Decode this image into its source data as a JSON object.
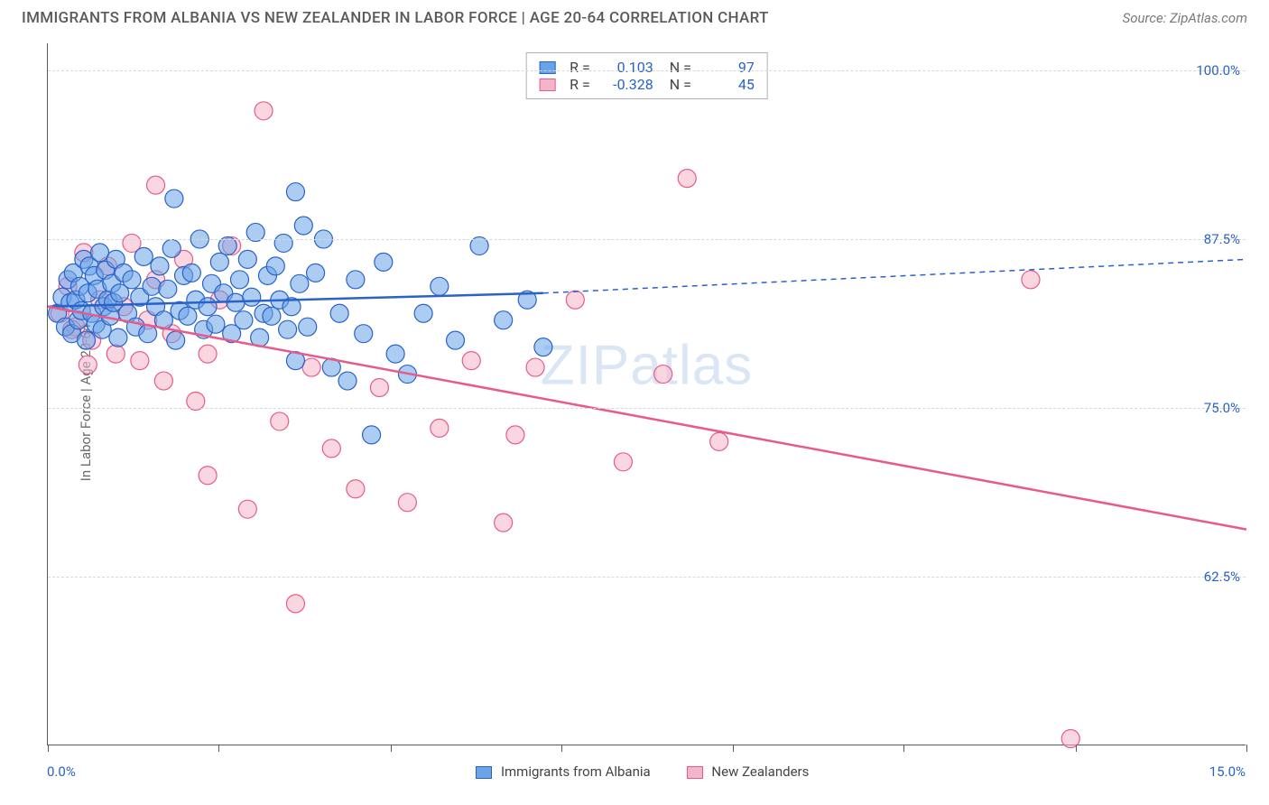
{
  "header": {
    "title": "IMMIGRANTS FROM ALBANIA VS NEW ZEALANDER IN LABOR FORCE | AGE 20-64 CORRELATION CHART",
    "source": "Source: ZipAtlas.com"
  },
  "chart": {
    "type": "scatter",
    "ylabel": "In Labor Force | Age 20-64",
    "xlim": [
      0,
      15
    ],
    "ylim": [
      50,
      102
    ],
    "yticks": [
      62.5,
      75.0,
      87.5,
      100.0
    ],
    "ytick_labels": [
      "62.5%",
      "75.0%",
      "87.5%",
      "100.0%"
    ],
    "xtick_positions": [
      0,
      2.14,
      4.29,
      6.43,
      8.57,
      10.71,
      12.86,
      15
    ],
    "x_start_label": "0.0%",
    "x_end_label": "15.0%",
    "background_color": "#ffffff",
    "grid_color": "#d8d8d8",
    "axis_color": "#5a5a5a",
    "tick_label_color": "#2962c9",
    "marker_radius": 10,
    "marker_opacity": 0.55,
    "line_width": 2.5
  },
  "series": {
    "albania": {
      "label": "Immigrants from Albania",
      "color": "#6aa3e8",
      "stroke": "#2962c9",
      "R": "0.103",
      "N": "97",
      "regression": {
        "x1": 0,
        "y1": 82.5,
        "x2": 6.2,
        "y2": 83.5,
        "ext_x2": 15,
        "ext_y2": 86.0
      },
      "points": [
        [
          0.12,
          82.0
        ],
        [
          0.18,
          83.2
        ],
        [
          0.22,
          81.0
        ],
        [
          0.25,
          84.5
        ],
        [
          0.28,
          82.8
        ],
        [
          0.3,
          80.5
        ],
        [
          0.32,
          85.0
        ],
        [
          0.35,
          83.0
        ],
        [
          0.38,
          81.5
        ],
        [
          0.4,
          84.0
        ],
        [
          0.42,
          82.2
        ],
        [
          0.45,
          86.0
        ],
        [
          0.48,
          80.0
        ],
        [
          0.5,
          83.5
        ],
        [
          0.52,
          85.5
        ],
        [
          0.55,
          82.0
        ],
        [
          0.58,
          84.8
        ],
        [
          0.6,
          81.2
        ],
        [
          0.62,
          83.8
        ],
        [
          0.65,
          86.5
        ],
        [
          0.68,
          80.8
        ],
        [
          0.7,
          82.5
        ],
        [
          0.72,
          85.2
        ],
        [
          0.75,
          83.0
        ],
        [
          0.78,
          81.8
        ],
        [
          0.8,
          84.2
        ],
        [
          0.82,
          82.8
        ],
        [
          0.85,
          86.0
        ],
        [
          0.88,
          80.2
        ],
        [
          0.9,
          83.5
        ],
        [
          0.95,
          85.0
        ],
        [
          1.0,
          82.0
        ],
        [
          1.05,
          84.5
        ],
        [
          1.1,
          81.0
        ],
        [
          1.15,
          83.2
        ],
        [
          1.2,
          86.2
        ],
        [
          1.25,
          80.5
        ],
        [
          1.3,
          84.0
        ],
        [
          1.35,
          82.5
        ],
        [
          1.4,
          85.5
        ],
        [
          1.45,
          81.5
        ],
        [
          1.5,
          83.8
        ],
        [
          1.55,
          86.8
        ],
        [
          1.58,
          90.5
        ],
        [
          1.6,
          80.0
        ],
        [
          1.65,
          82.2
        ],
        [
          1.7,
          84.8
        ],
        [
          1.75,
          81.8
        ],
        [
          1.8,
          85.0
        ],
        [
          1.85,
          83.0
        ],
        [
          1.9,
          87.5
        ],
        [
          1.95,
          80.8
        ],
        [
          2.0,
          82.5
        ],
        [
          2.05,
          84.2
        ],
        [
          2.1,
          81.2
        ],
        [
          2.15,
          85.8
        ],
        [
          2.2,
          83.5
        ],
        [
          2.25,
          87.0
        ],
        [
          2.3,
          80.5
        ],
        [
          2.35,
          82.8
        ],
        [
          2.4,
          84.5
        ],
        [
          2.45,
          81.5
        ],
        [
          2.5,
          86.0
        ],
        [
          2.55,
          83.2
        ],
        [
          2.6,
          88.0
        ],
        [
          2.65,
          80.2
        ],
        [
          2.7,
          82.0
        ],
        [
          2.75,
          84.8
        ],
        [
          2.8,
          81.8
        ],
        [
          2.85,
          85.5
        ],
        [
          2.9,
          83.0
        ],
        [
          2.95,
          87.2
        ],
        [
          3.0,
          80.8
        ],
        [
          3.05,
          82.5
        ],
        [
          3.1,
          78.5
        ],
        [
          3.15,
          84.2
        ],
        [
          3.2,
          88.5
        ],
        [
          3.25,
          81.0
        ],
        [
          3.35,
          85.0
        ],
        [
          3.45,
          87.5
        ],
        [
          3.55,
          78.0
        ],
        [
          3.65,
          82.0
        ],
        [
          3.75,
          77.0
        ],
        [
          3.85,
          84.5
        ],
        [
          3.95,
          80.5
        ],
        [
          4.05,
          73.0
        ],
        [
          4.2,
          85.8
        ],
        [
          4.35,
          79.0
        ],
        [
          4.5,
          77.5
        ],
        [
          4.7,
          82.0
        ],
        [
          4.9,
          84.0
        ],
        [
          5.1,
          80.0
        ],
        [
          5.4,
          87.0
        ],
        [
          5.7,
          81.5
        ],
        [
          6.0,
          83.0
        ],
        [
          6.2,
          79.5
        ],
        [
          3.1,
          91.0
        ]
      ]
    },
    "nz": {
      "label": "New Zealanders",
      "color": "#f5b5c8",
      "stroke": "#e85a8a",
      "R": "-0.328",
      "N": "45",
      "regression": {
        "x1": 0,
        "y1": 82.5,
        "x2": 15,
        "y2": 66.0
      },
      "points": [
        [
          0.15,
          82.0
        ],
        [
          0.25,
          84.0
        ],
        [
          0.35,
          81.0
        ],
        [
          0.45,
          86.5
        ],
        [
          0.55,
          80.0
        ],
        [
          0.65,
          83.0
        ],
        [
          0.75,
          85.5
        ],
        [
          0.85,
          79.0
        ],
        [
          0.95,
          82.5
        ],
        [
          1.05,
          87.2
        ],
        [
          1.15,
          78.5
        ],
        [
          1.25,
          81.5
        ],
        [
          1.35,
          84.5
        ],
        [
          1.45,
          77.0
        ],
        [
          1.55,
          80.5
        ],
        [
          1.7,
          86.0
        ],
        [
          1.85,
          75.5
        ],
        [
          2.0,
          79.0
        ],
        [
          2.15,
          83.0
        ],
        [
          2.3,
          87.0
        ],
        [
          2.5,
          67.5
        ],
        [
          2.7,
          97.0
        ],
        [
          2.9,
          74.0
        ],
        [
          3.1,
          60.5
        ],
        [
          3.3,
          78.0
        ],
        [
          3.55,
          72.0
        ],
        [
          3.85,
          69.0
        ],
        [
          4.15,
          76.5
        ],
        [
          4.5,
          68.0
        ],
        [
          4.9,
          73.5
        ],
        [
          5.3,
          78.5
        ],
        [
          5.7,
          66.5
        ],
        [
          5.85,
          73.0
        ],
        [
          6.1,
          78.0
        ],
        [
          6.6,
          83.0
        ],
        [
          7.2,
          71.0
        ],
        [
          7.7,
          77.5
        ],
        [
          8.0,
          92.0
        ],
        [
          8.4,
          72.5
        ],
        [
          12.3,
          84.5
        ],
        [
          12.8,
          50.5
        ],
        [
          1.35,
          91.5
        ],
        [
          2.0,
          70.0
        ],
        [
          0.3,
          80.8
        ],
        [
          0.5,
          78.2
        ]
      ]
    }
  },
  "watermark": {
    "part1": "ZIP",
    "part2": "atlas"
  }
}
